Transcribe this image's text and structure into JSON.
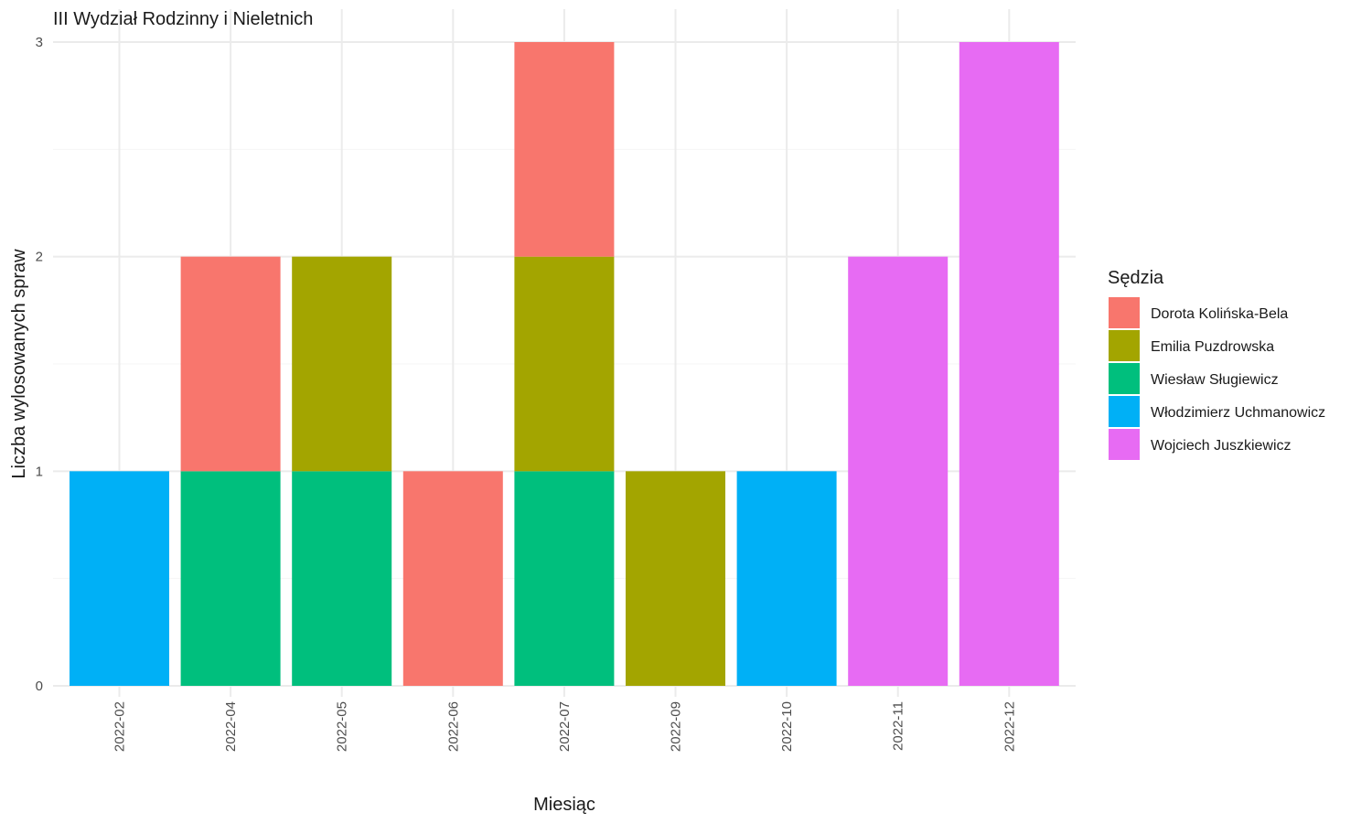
{
  "chart_data": {
    "type": "bar",
    "stacked": true,
    "title": "III Wydział Rodzinny i Nieletnich",
    "xlabel": "Miesiąc",
    "ylabel": "Liczba wylosowanych spraw",
    "ylim": [
      0,
      3
    ],
    "yticks": [
      0,
      1,
      2,
      3
    ],
    "grid": true,
    "legend_title": "Sędzia",
    "legend_position": "right",
    "categories": [
      "2022-02",
      "2022-04",
      "2022-05",
      "2022-06",
      "2022-07",
      "2022-09",
      "2022-10",
      "2022-11",
      "2022-12"
    ],
    "series": [
      {
        "name": "Dorota Kolińska-Bela",
        "color": "#F8766D",
        "values": [
          0,
          1,
          0,
          1,
          1,
          0,
          0,
          0,
          0
        ]
      },
      {
        "name": "Emilia Puzdrowska",
        "color": "#A3A500",
        "values": [
          0,
          0,
          1,
          0,
          1,
          1,
          0,
          0,
          0
        ]
      },
      {
        "name": "Wiesław Sługiewicz",
        "color": "#00BF7D",
        "values": [
          0,
          1,
          1,
          0,
          1,
          0,
          0,
          0,
          0
        ]
      },
      {
        "name": "Włodzimierz Uchmanowicz",
        "color": "#00B0F6",
        "values": [
          1,
          0,
          0,
          0,
          0,
          0,
          1,
          0,
          0
        ]
      },
      {
        "name": "Wojciech Juszkiewicz",
        "color": "#E76BF3",
        "values": [
          0,
          0,
          0,
          0,
          0,
          0,
          0,
          2,
          3
        ]
      }
    ]
  }
}
